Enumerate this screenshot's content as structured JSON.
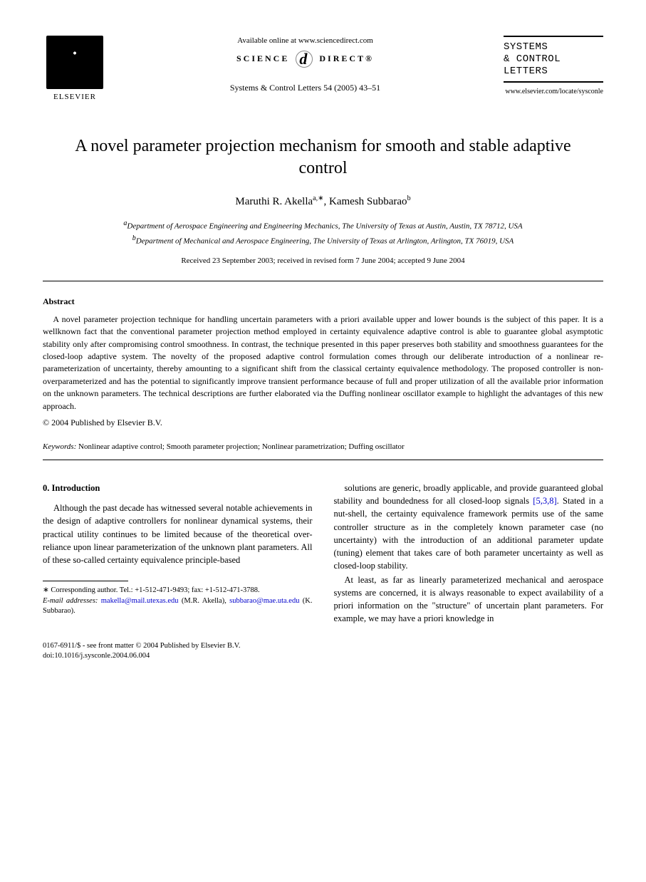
{
  "header": {
    "elsevier_label": "ELSEVIER",
    "available_online": "Available online at www.sciencedirect.com",
    "science_direct_left": "SCIENCE",
    "science_direct_right": "DIRECT®",
    "journal_ref": "Systems & Control Letters 54 (2005) 43–51",
    "journal_logo_line1": "SYSTEMS",
    "journal_logo_line2": "& CONTROL",
    "journal_logo_line3": "LETTERS",
    "journal_url": "www.elsevier.com/locate/sysconle"
  },
  "title": "A novel parameter projection mechanism for smooth and stable adaptive control",
  "authors": {
    "a1_name": "Maruthi R. Akella",
    "a1_sup": "a,∗",
    "a2_name": "Kamesh Subbarao",
    "a2_sup": "b"
  },
  "affiliations": {
    "a": "Department of Aerospace Engineering and Engineering Mechanics, The University of Texas at Austin, Austin, TX 78712, USA",
    "b": "Department of Mechanical and Aerospace Engineering, The University of Texas at Arlington, Arlington, TX 76019, USA"
  },
  "dates": "Received 23 September 2003; received in revised form 7 June 2004; accepted 9 June 2004",
  "abstract": {
    "heading": "Abstract",
    "body": "A novel parameter projection technique for handling uncertain parameters with a priori available upper and lower bounds is the subject of this paper. It is a wellknown fact that the conventional parameter projection method employed in certainty equivalence adaptive control is able to guarantee global asymptotic stability only after compromising control smoothness. In contrast, the technique presented in this paper preserves both stability and smoothness guarantees for the closed-loop adaptive system. The novelty of the proposed adaptive control formulation comes through our deliberate introduction of a nonlinear re-parameterization of uncertainty, thereby amounting to a significant shift from the classical certainty equivalence methodology. The proposed controller is non-overparameterized and has the potential to significantly improve transient performance because of full and proper utilization of all the available prior information on the unknown parameters. The technical descriptions are further elaborated via the Duffing nonlinear oscillator example to highlight the advantages of this new approach.",
    "copyright": "© 2004 Published by Elsevier B.V."
  },
  "keywords": {
    "label": "Keywords:",
    "text": "Nonlinear adaptive control; Smooth parameter projection; Nonlinear parametrization; Duffing oscillator"
  },
  "section0": {
    "heading": "0. Introduction",
    "col1_p1": "Although the past decade has witnessed several notable achievements in the design of adaptive controllers for nonlinear dynamical systems, their practical utility continues to be limited because of the theoretical over-reliance upon linear parameterization of the unknown plant parameters. All of these so-called certainty equivalence principle-based",
    "col2_p1a": "solutions are generic, broadly applicable, and provide guaranteed global stability and boundedness for all closed-loop signals ",
    "col2_cites": "[5,3,8]",
    "col2_p1b": ". Stated in a nut-shell, the certainty equivalence framework permits use of the same controller structure as in the completely known parameter case (no uncertainty) with the introduction of an additional parameter update (tuning) element that takes care of both parameter uncertainty as well as closed-loop stability.",
    "col2_p2": "At least, as far as linearly parameterized mechanical and aerospace systems are concerned, it is always reasonable to expect availability of a priori information on the \"structure\" of uncertain plant parameters. For example, we may have a priori knowledge in"
  },
  "footnotes": {
    "corr": "∗ Corresponding author. Tel.: +1-512-471-9493; fax: +1-512-471-3788.",
    "email_label": "E-mail addresses:",
    "email1": "makella@mail.utexas.edu",
    "email1_who": "(M.R. Akella),",
    "email2": "subbarao@mae.uta.edu",
    "email2_who": "(K. Subbarao)."
  },
  "bottom": {
    "issn": "0167-6911/$ - see front matter © 2004 Published by Elsevier B.V.",
    "doi": "doi:10.1016/j.sysconle.2004.06.004"
  }
}
